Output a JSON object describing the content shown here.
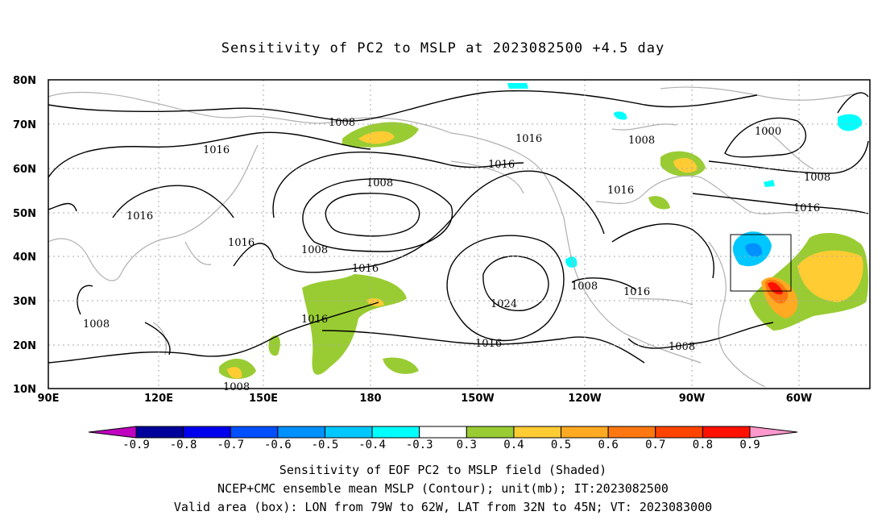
{
  "title": "Sensitivity of PC2 to MSLP at 2023082500 +4.5 day",
  "lat_labels": [
    "80N",
    "70N",
    "60N",
    "50N",
    "40N",
    "30N",
    "20N",
    "10N"
  ],
  "lon_labels": [
    "90E",
    "120E",
    "150E",
    "180",
    "150W",
    "120W",
    "90W",
    "60W"
  ],
  "contour_labels": {
    "c1": "1008",
    "c2": "1016",
    "c3": "1016",
    "c4": "1008",
    "c5": "1016",
    "c6": "1000",
    "c7": "1008",
    "c8": "1016",
    "c9": "1016",
    "c10": "1016",
    "c11": "1008",
    "c12": "1016",
    "c13": "1016",
    "c14": "1008",
    "c15": "1016",
    "c16": "1008",
    "c17": "1024",
    "c18": "1016",
    "c19": "1008",
    "c20": "1008",
    "c21": "1016",
    "c22": "1008"
  },
  "colorbar": {
    "labels": [
      "-0.9",
      "-0.8",
      "-0.7",
      "-0.6",
      "-0.5",
      "-0.4",
      "-0.3",
      "0.3",
      "0.4",
      "0.5",
      "0.6",
      "0.7",
      "0.8",
      "0.9"
    ],
    "colors": [
      "#00009a",
      "#0000ee",
      "#0050ff",
      "#0090ff",
      "#00c8ff",
      "#00ffff",
      "#ffffff",
      "#99cc33",
      "#ffcc33",
      "#ffaa22",
      "#ff7711",
      "#ff4400",
      "#ff1100"
    ],
    "low_extend_color": "#c000c0",
    "high_extend_color": "#ff99cc"
  },
  "captions": {
    "line1": "Sensitivity of EOF PC2 to MSLP field (Shaded)",
    "line2": "NCEP+CMC ensemble mean MSLP (Contour); unit(mb); IT:2023082500",
    "line3": "Valid area (box): LON from 79W to 62W, LAT from 32N to 45N; VT: 2023083000"
  }
}
